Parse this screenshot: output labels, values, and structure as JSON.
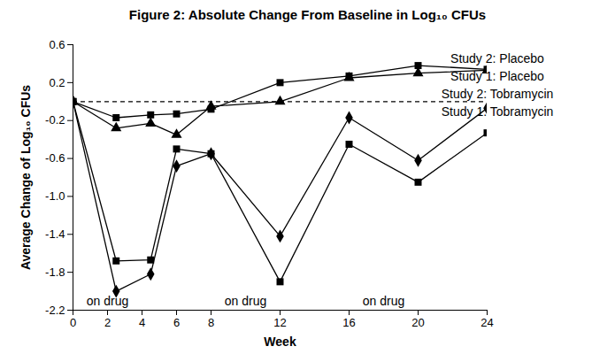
{
  "chart_data": {
    "type": "line",
    "title": "Figure 2: Absolute Change From Baseline in Log₁₀ CFUs",
    "x_label": "Week",
    "y_label": "Average Change of Log₁₀ CFUs",
    "x": [
      0,
      2.5,
      4.5,
      6,
      8,
      12,
      16,
      20,
      24
    ],
    "series": [
      {
        "name": "Study 2: Placebo",
        "color": "#000000",
        "marker": "square",
        "values": [
          0,
          -0.17,
          -0.14,
          -0.13,
          -0.08,
          0.2,
          0.27,
          0.38,
          0.34
        ]
      },
      {
        "name": "Study 1: Placebo",
        "color": "#000000",
        "marker": "triangle",
        "values": [
          0,
          -0.28,
          -0.23,
          -0.35,
          -0.05,
          0.0,
          0.25,
          0.3,
          0.33
        ]
      },
      {
        "name": "Study 2: Tobramycin",
        "color": "#000000",
        "marker": "diamond",
        "values": [
          0,
          -2.0,
          -1.82,
          -0.68,
          -0.55,
          -1.42,
          -0.17,
          -0.62,
          -0.07
        ]
      },
      {
        "name": "Study 1: Tobramycin",
        "color": "#000000",
        "marker": "square",
        "values": [
          0,
          -1.68,
          -1.67,
          -0.5,
          -0.55,
          -1.9,
          -0.45,
          -0.85,
          -0.33
        ]
      }
    ],
    "xlim": [
      0,
      24
    ],
    "xticks": [
      0,
      2,
      4,
      6,
      8,
      12,
      16,
      20,
      24
    ],
    "ylim": [
      -2.2,
      0.6
    ],
    "yticks": [
      0.6,
      0.2,
      -0.2,
      -0.6,
      {
        "value": -1.0,
        "label": "-1.0"
      },
      -1.4,
      -1.8,
      -2.2
    ],
    "reference_line": {
      "value": 0,
      "line_style": "dashed"
    },
    "annotations": [
      {
        "text": "on drug",
        "x": 2
      },
      {
        "text": "on drug",
        "x": 10
      },
      {
        "text": "on drug",
        "x": 18
      }
    ],
    "grid": false,
    "legend": "right"
  }
}
